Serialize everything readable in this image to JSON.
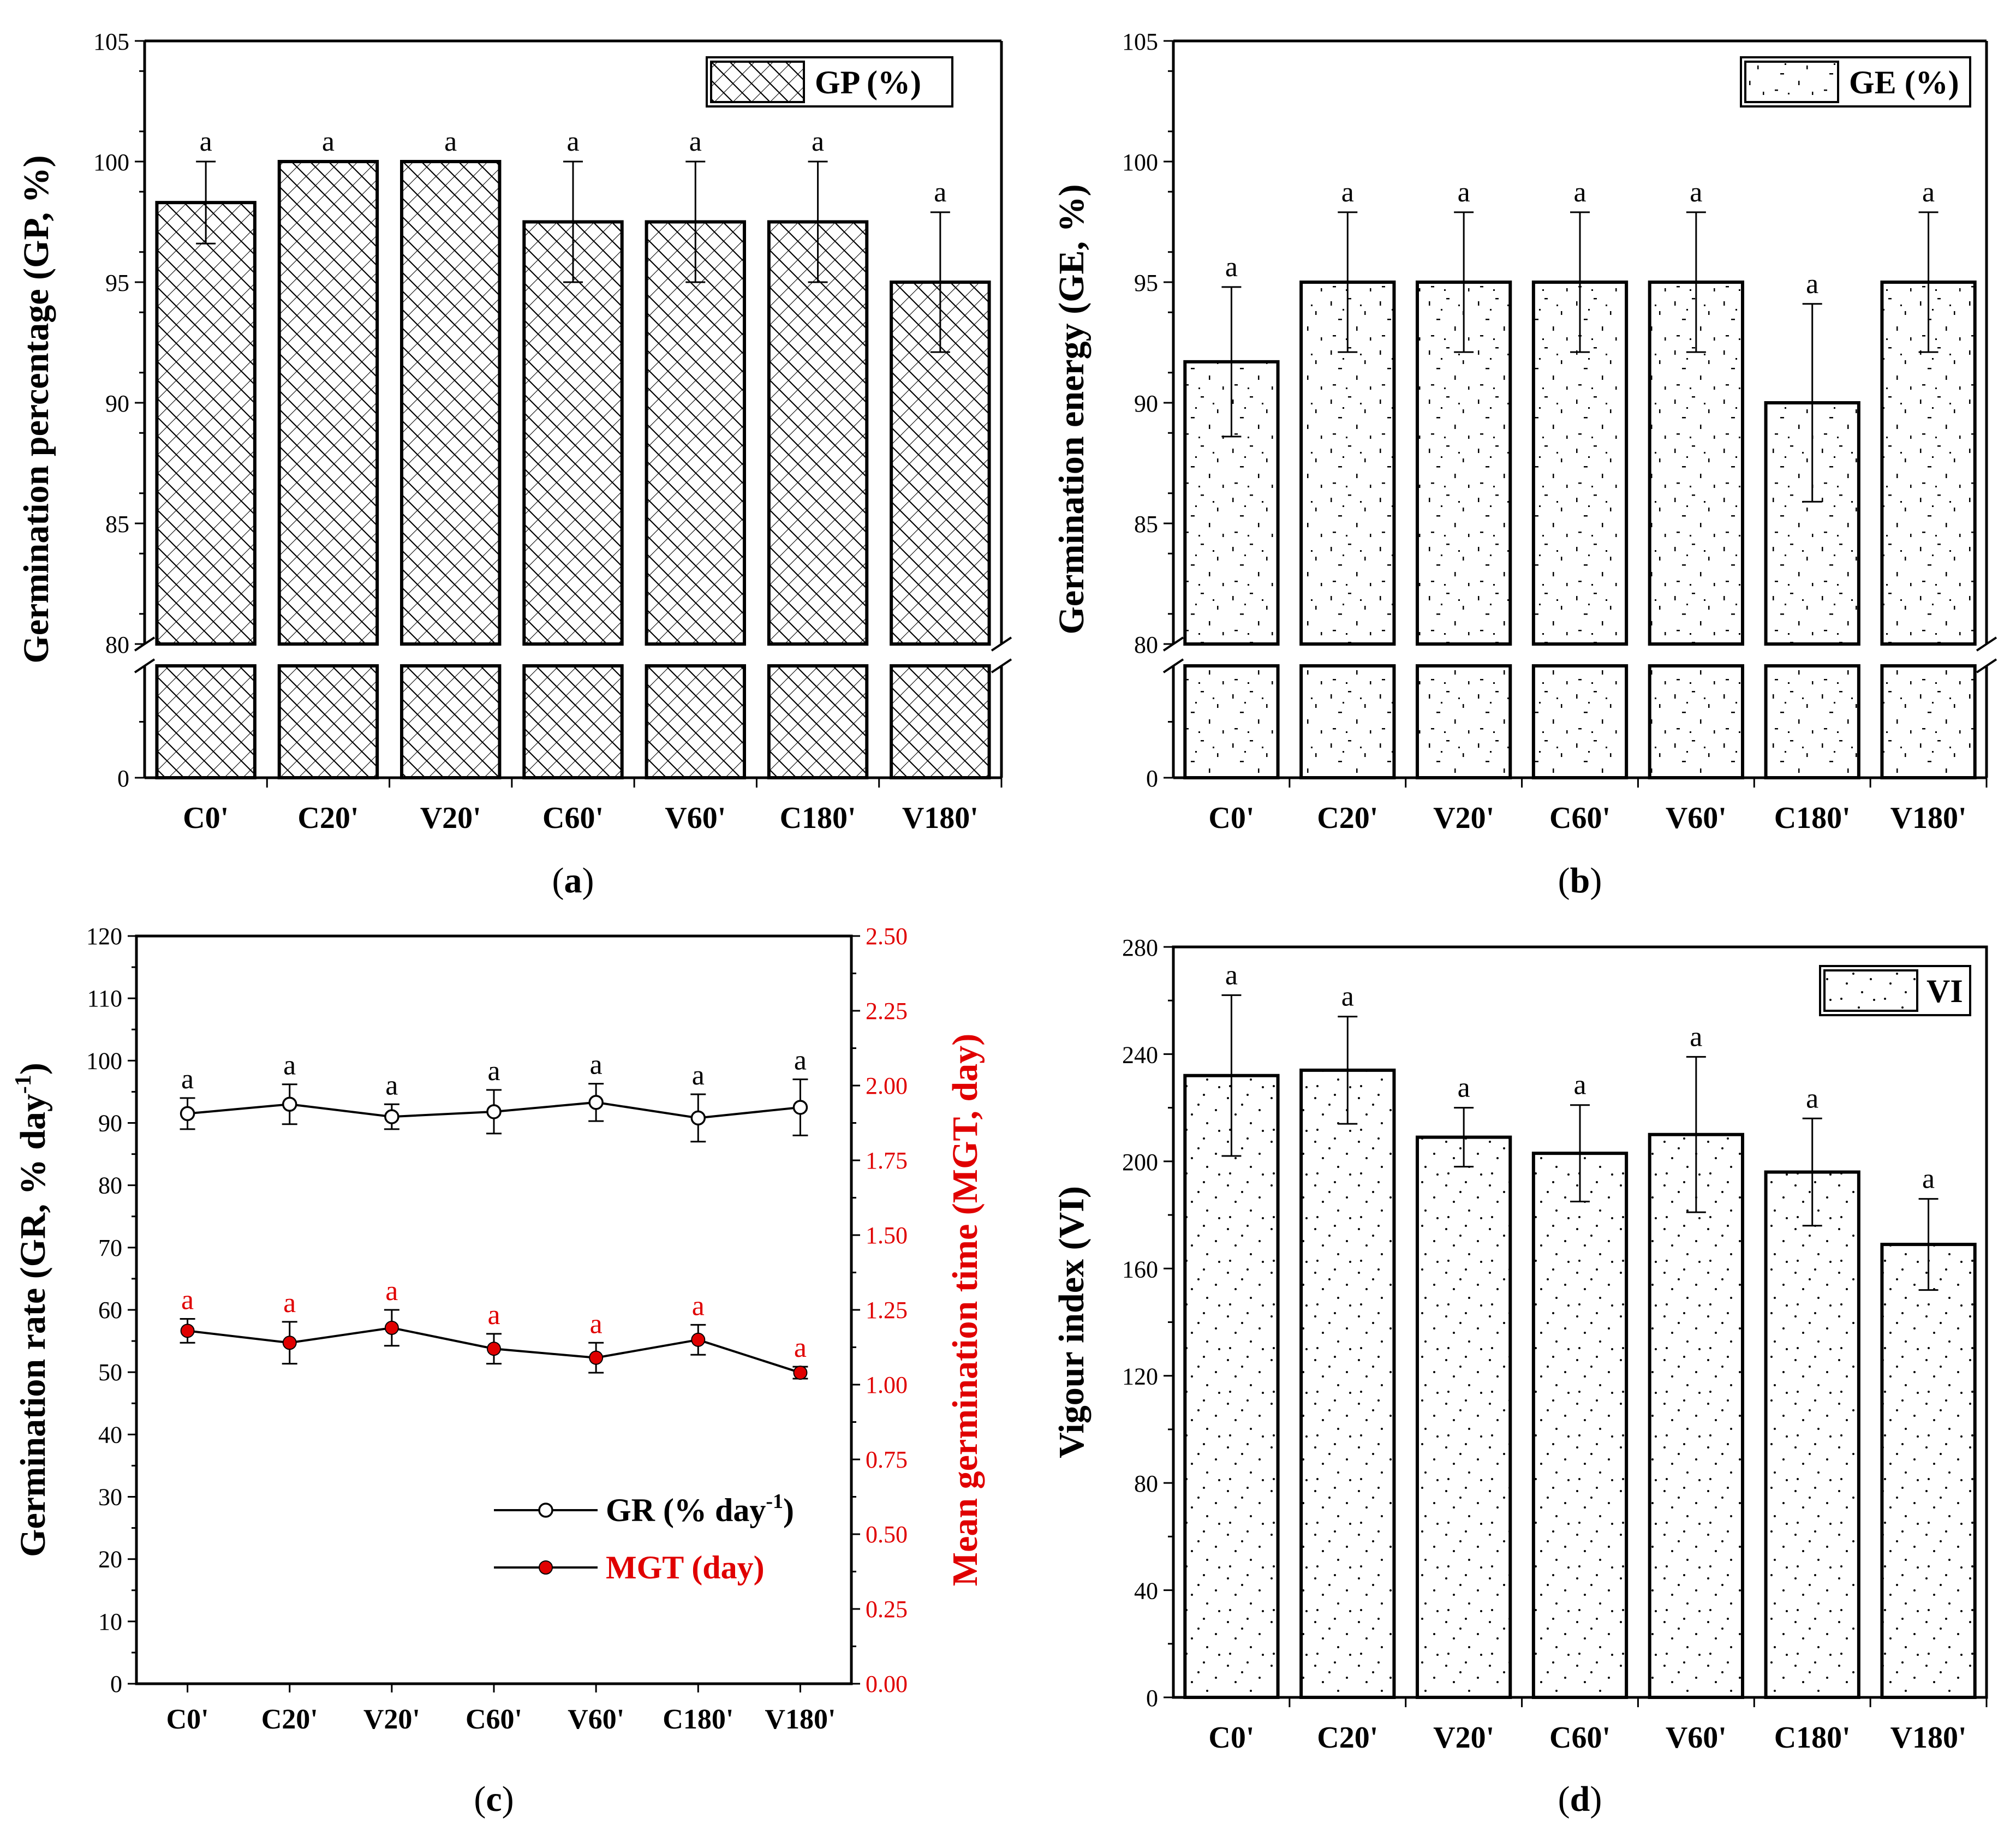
{
  "chart_data": [
    {
      "id": "a",
      "type": "bar",
      "panel_label": "a",
      "categories": [
        "C0'",
        "C20'",
        "V20'",
        "C60'",
        "V60'",
        "C180'",
        "V180'"
      ],
      "values": [
        98.3,
        100,
        100,
        97.5,
        97.5,
        97.5,
        95
      ],
      "errors": [
        1.7,
        0,
        0,
        2.5,
        2.5,
        2.5,
        2.9
      ],
      "significance": [
        "a",
        "a",
        "a",
        "a",
        "a",
        "a",
        "a"
      ],
      "ylabel": "Germination percentage (GP, %)",
      "legend": "GP (%)",
      "pattern": "crosshatch",
      "yticks_lower": [
        0
      ],
      "yticks_upper": [
        80,
        85,
        90,
        95,
        100,
        105
      ],
      "axis_break": [
        0,
        80
      ],
      "ylim": [
        80,
        105
      ]
    },
    {
      "id": "b",
      "type": "bar",
      "panel_label": "b",
      "categories": [
        "C0'",
        "C20'",
        "V20'",
        "C60'",
        "V60'",
        "C180'",
        "V180'"
      ],
      "values": [
        91.7,
        95,
        95,
        95,
        95,
        90,
        95
      ],
      "errors": [
        3.1,
        2.9,
        2.9,
        2.9,
        2.9,
        4.1,
        2.9
      ],
      "significance": [
        "a",
        "a",
        "a",
        "a",
        "a",
        "a",
        "a"
      ],
      "ylabel": "Germination energy (GE, %)",
      "legend": "GE (%)",
      "pattern": "dots",
      "yticks_lower": [
        0
      ],
      "yticks_upper": [
        80,
        85,
        90,
        95,
        100,
        105
      ],
      "axis_break": [
        0,
        80
      ],
      "ylim": [
        80,
        105
      ]
    },
    {
      "id": "c",
      "type": "line",
      "panel_label": "c",
      "categories": [
        "C0'",
        "C20'",
        "V20'",
        "C60'",
        "V60'",
        "C180'",
        "V180'"
      ],
      "ylabel": "Germination rate (GR, % day",
      "ylabel_sup": "-1",
      "ylabel_end": ")",
      "y2label": "Mean germination time (MGT, day)",
      "ylim": [
        0,
        120
      ],
      "y2lim": [
        0,
        2.5
      ],
      "yticks": [
        0,
        10,
        20,
        30,
        40,
        50,
        60,
        70,
        80,
        90,
        100,
        110,
        120
      ],
      "y2ticks": [
        "0.00",
        "0.25",
        "0.50",
        "0.75",
        "1.00",
        "1.25",
        "1.50",
        "1.75",
        "2.00",
        "2.25",
        "2.50"
      ],
      "series": [
        {
          "name": "GR (% day",
          "name_sup": "-1",
          "name_end": ")",
          "axis": "left",
          "marker": "open-circle",
          "color": "#000000",
          "values": [
            91.5,
            93,
            91,
            91.8,
            93.3,
            90.8,
            92.5
          ],
          "errors": [
            2.5,
            3.2,
            2.0,
            3.5,
            3.0,
            3.8,
            4.5
          ],
          "significance": [
            "a",
            "a",
            "a",
            "a",
            "a",
            "a",
            "a"
          ]
        },
        {
          "name": "MGT (day)",
          "axis": "right",
          "marker": "filled-circle",
          "color": "#e00000",
          "values": [
            1.18,
            1.14,
            1.19,
            1.12,
            1.09,
            1.15,
            1.04
          ],
          "errors": [
            0.04,
            0.07,
            0.06,
            0.05,
            0.05,
            0.05,
            0.02
          ],
          "significance": [
            "a",
            "a",
            "a",
            "a",
            "a",
            "a",
            "a"
          ]
        }
      ]
    },
    {
      "id": "d",
      "type": "bar",
      "panel_label": "d",
      "categories": [
        "C0'",
        "C20'",
        "V20'",
        "C60'",
        "V60'",
        "C180'",
        "V180'"
      ],
      "values": [
        232,
        234,
        209,
        203,
        210,
        196,
        169
      ],
      "errors": [
        30,
        20,
        11,
        18,
        29,
        20,
        17
      ],
      "significance": [
        "a",
        "a",
        "a",
        "a",
        "a",
        "a",
        "a"
      ],
      "ylabel": "Vigour index (VI)",
      "legend": "VI",
      "pattern": "dots",
      "yticks": [
        0,
        40,
        80,
        120,
        160,
        200,
        240,
        280
      ],
      "ylim": [
        0,
        280
      ]
    }
  ]
}
